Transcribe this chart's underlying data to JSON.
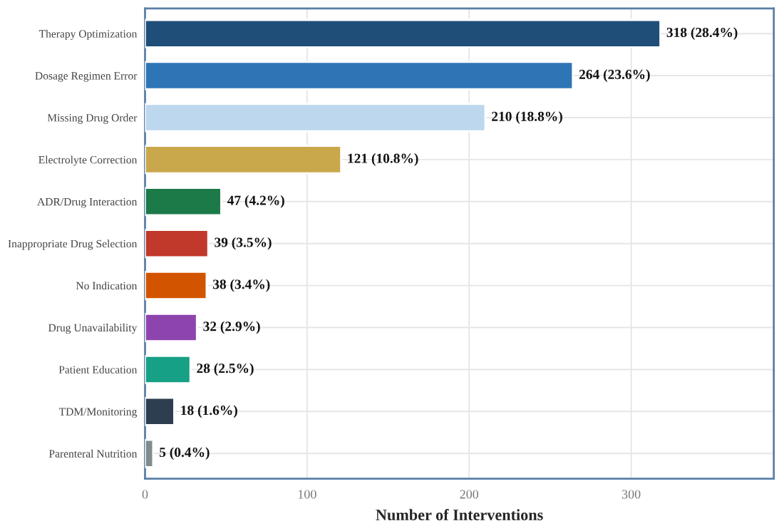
{
  "chart_data": {
    "type": "bar",
    "orientation": "horizontal",
    "xlabel": "Number of Interventions",
    "categories": [
      "Therapy Optimization",
      "Dosage Regimen Error",
      "Missing Drug Order",
      "Electrolyte Correction",
      "ADR/Drug Interaction",
      "Inappropriate Drug Selection",
      "No Indication",
      "Drug Unavailability",
      "Patient Education",
      "TDM/Monitoring",
      "Parenteral Nutrition"
    ],
    "values": [
      318,
      264,
      210,
      121,
      47,
      39,
      38,
      32,
      28,
      18,
      5
    ],
    "value_labels": [
      "318 (28.4%)",
      "264 (23.6%)",
      "210 (18.8%)",
      "121 (10.8%)",
      "47 (4.2%)",
      "39 (3.5%)",
      "38 (3.4%)",
      "32 (2.9%)",
      "28 (2.5%)",
      "18 (1.6%)",
      "5 (0.4%)"
    ],
    "colors": [
      "#1f4e79",
      "#2e75b6",
      "#bdd7ee",
      "#c9a84c",
      "#1b7a48",
      "#c0392b",
      "#d35400",
      "#8e44ad",
      "#16a085",
      "#2c3e50",
      "#7f8c8d"
    ],
    "xlim": [
      0,
      388
    ],
    "xticks": [
      0,
      100,
      200,
      300
    ],
    "grid": true
  }
}
